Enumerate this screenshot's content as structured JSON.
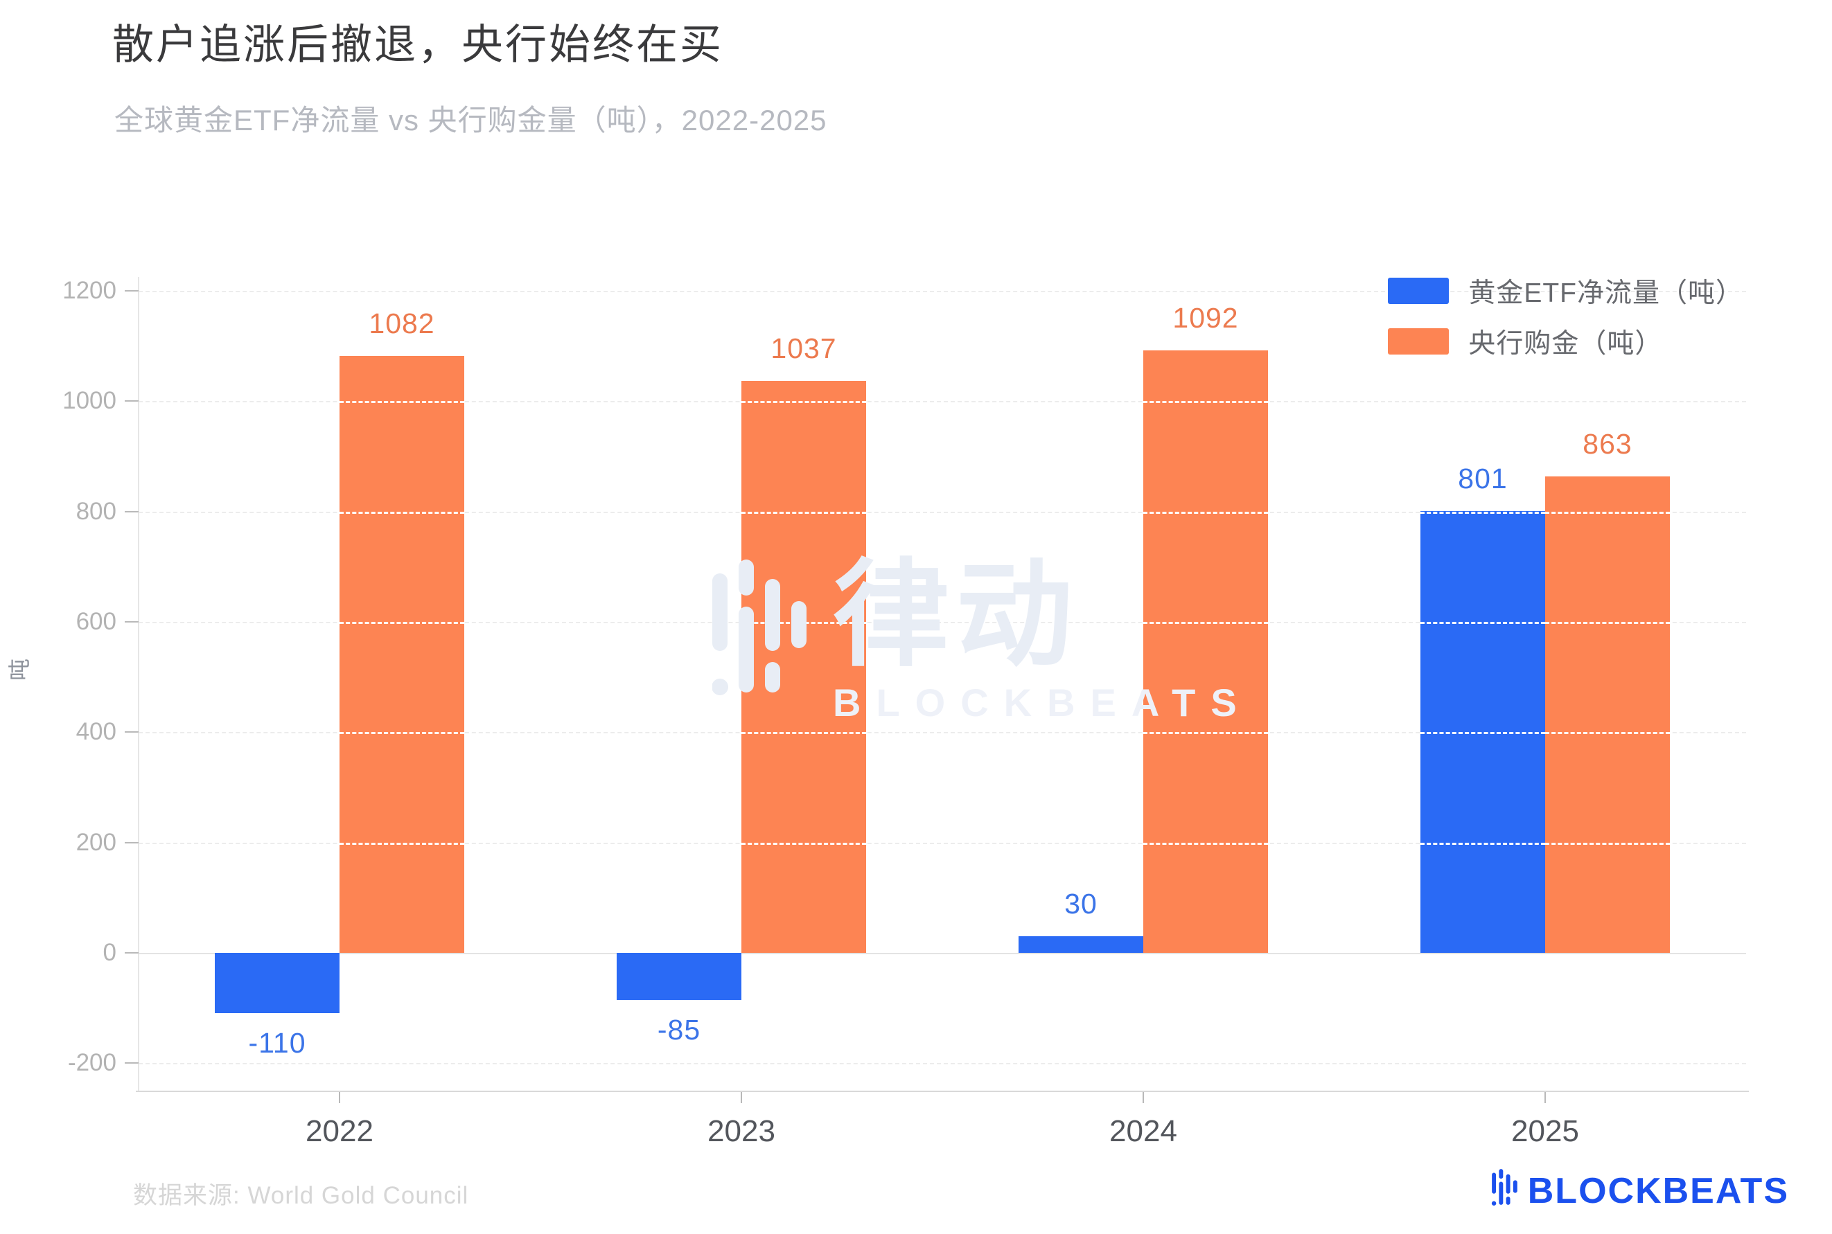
{
  "title": "散户追涨后撤退，央行始终在买",
  "subtitle": "全球黄金ETF净流量 vs 央行购金量（吨），2022-2025",
  "chart_data": {
    "type": "bar",
    "categories": [
      "2022",
      "2023",
      "2024",
      "2025"
    ],
    "series": [
      {
        "name": "黄金ETF净流量（吨）",
        "color": "#2a6af5",
        "label_color": "#3b74e8",
        "values": [
          -110,
          -85,
          30,
          801
        ]
      },
      {
        "name": "央行购金（吨）",
        "color": "#fd8453",
        "label_color": "#ec7a4e",
        "values": [
          1082,
          1037,
          1092,
          863
        ]
      }
    ],
    "ylabel": "吨",
    "ylim": [
      -200,
      1200
    ],
    "ytick_step": 200,
    "yticks": [
      -200,
      0,
      200,
      400,
      600,
      800,
      1000,
      1200
    ],
    "grid": true,
    "legend_position": "top-right"
  },
  "watermark": {
    "cjk": "律动",
    "latin": "BLOCKBEATS"
  },
  "source_note": "数据来源: World Gold Council",
  "brand": {
    "name": "BLOCKBEATS",
    "color": "#1b50ee",
    "watermark_color": "#e8edf5"
  }
}
